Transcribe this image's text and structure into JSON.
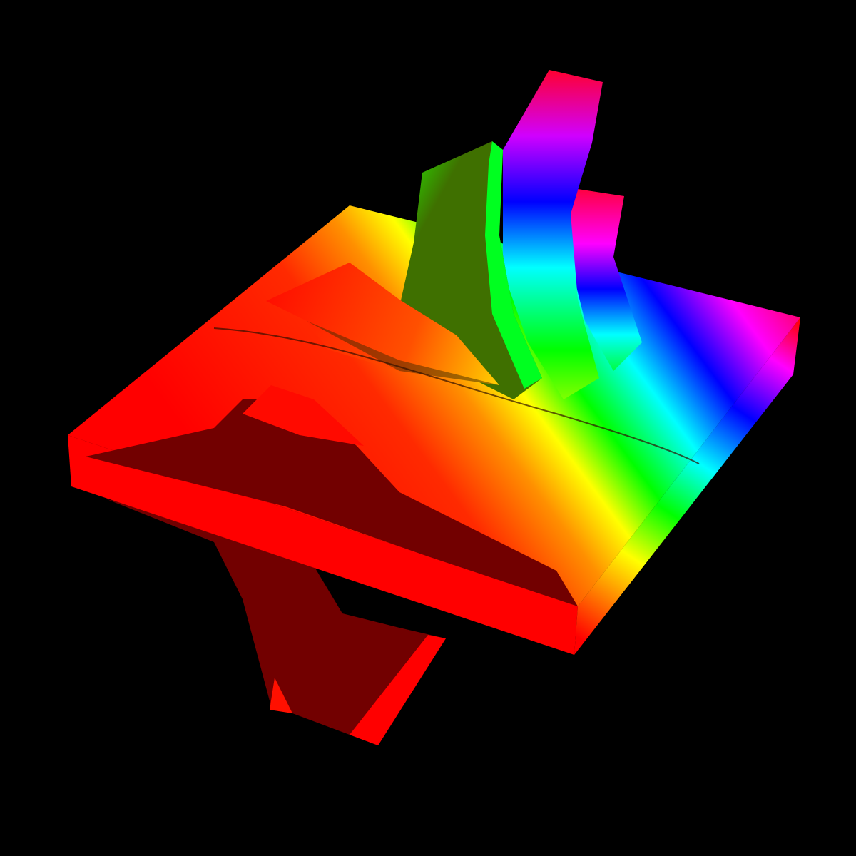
{
  "scene": {
    "background": "#000000",
    "colormap": [
      "#ff0000",
      "#ff8000",
      "#ffff00",
      "#00ff00",
      "#00ffff",
      "#0000ff",
      "#ff00ff",
      "#ff0000"
    ],
    "shadow_red": "#720000",
    "fin_green_dark": "#3f7000"
  }
}
